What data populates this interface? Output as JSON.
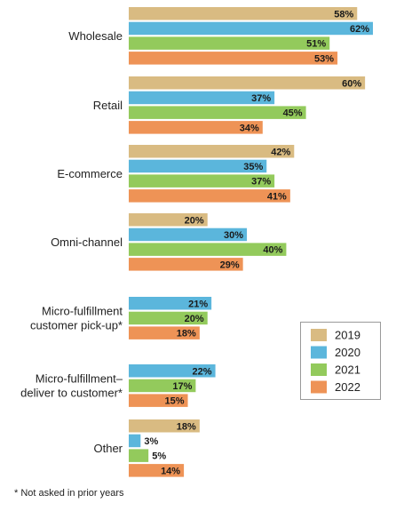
{
  "chart_data": {
    "type": "bar",
    "orientation": "horizontal",
    "categories": [
      [
        "Wholesale"
      ],
      [
        "Retail"
      ],
      [
        "E-commerce"
      ],
      [
        "Omni-channel"
      ],
      [
        "Micro-fulfillment",
        "customer pick-up*"
      ],
      [
        "Micro-fulfillment–",
        "deliver to customer*"
      ],
      [
        "Other"
      ]
    ],
    "series": [
      {
        "name": "2019",
        "color": "#D9BB82",
        "values": [
          58,
          60,
          42,
          20,
          null,
          null,
          18
        ]
      },
      {
        "name": "2020",
        "color": "#5BB6DC",
        "values": [
          62,
          37,
          35,
          30,
          21,
          22,
          3
        ]
      },
      {
        "name": "2021",
        "color": "#93CA5C",
        "values": [
          51,
          45,
          37,
          40,
          20,
          17,
          5
        ]
      },
      {
        "name": "2022",
        "color": "#EE9356",
        "values": [
          53,
          34,
          41,
          29,
          18,
          15,
          14
        ]
      }
    ],
    "value_suffix": "%",
    "xlim": [
      0,
      62
    ],
    "grid": false,
    "legend_position": "bottom-right"
  },
  "footnote": "* Not asked in prior years"
}
